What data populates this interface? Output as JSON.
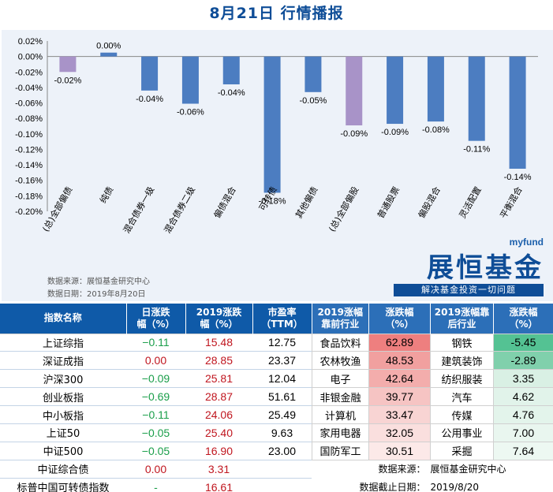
{
  "title": "8月21日  行情播报",
  "chart_data": {
    "type": "bar",
    "categories": [
      "(总)全部偏债",
      "纯债",
      "混合债券一级",
      "混合债券二级",
      "偏债混合",
      "可转债",
      "其他偏债",
      "(总)全部偏股",
      "普通股票",
      "偏股混合",
      "灵活配置",
      "平衡混合"
    ],
    "values": [
      -0.02,
      0.005,
      -0.044,
      -0.061,
      -0.036,
      -0.176,
      -0.046,
      -0.089,
      -0.087,
      -0.084,
      -0.109,
      -0.145
    ],
    "labels": [
      "-0.02%",
      "0.00%",
      "-0.04%",
      "-0.06%",
      "-0.04%",
      "-0.18%",
      "-0.05%",
      "-0.09%",
      "-0.09%",
      "-0.08%",
      "-0.11%",
      "-0.14%"
    ],
    "highlight": [
      0,
      7
    ],
    "bar_color": "#4c7dc1",
    "highlight_color": "#a893c8",
    "yticks": [
      "0.02%",
      "0.00%",
      "-0.02%",
      "-0.04%",
      "-0.06%",
      "-0.08%",
      "-0.10%",
      "-0.12%",
      "-0.14%",
      "-0.16%",
      "-0.18%",
      "-0.20%"
    ],
    "ylim": [
      -0.2,
      0.02
    ],
    "title": "",
    "xlabel": "",
    "ylabel": ""
  },
  "notes": {
    "source": "数据来源：展恒基金研究中心",
    "date": "数据日期：2019年8月20日"
  },
  "logo": {
    "my": "myfund",
    "main": "展恒基金",
    "slogan": "解决基金投资一切问题"
  },
  "index_table": {
    "headers": [
      "指数名称",
      "日涨跌\n幅（%）",
      "2019涨跌\n幅（%）",
      "市盈率\n（TTM）"
    ],
    "rows": [
      {
        "name": "上证综指",
        "day": "-0.11",
        "year": "15.48",
        "pe": "12.75"
      },
      {
        "name": "深证成指",
        "day": "0.00",
        "year": "28.85",
        "pe": "23.37"
      },
      {
        "name": "沪深300",
        "day": "-0.09",
        "year": "25.81",
        "pe": "12.04"
      },
      {
        "name": "创业板指",
        "day": "-0.69",
        "year": "28.87",
        "pe": "51.61"
      },
      {
        "name": "中小板指",
        "day": "-0.11",
        "year": "24.06",
        "pe": "25.49"
      },
      {
        "name": "上证50",
        "day": "-0.05",
        "year": "25.40",
        "pe": "9.63"
      },
      {
        "name": "中证500",
        "day": "-0.05",
        "year": "16.90",
        "pe": "23.00"
      },
      {
        "name": "中证综合债",
        "day": "0.00",
        "year": "3.31",
        "pe": ""
      },
      {
        "name": "标普中国可转债指数",
        "day": "-",
        "year": "16.61",
        "pe": ""
      }
    ]
  },
  "industry_table": {
    "headers": [
      "2019涨幅\n靠前行业",
      "涨跌幅\n（%）",
      "2019涨幅靠\n后行业",
      "涨跌幅\n（%）"
    ],
    "rows": [
      {
        "top": "食品饮料",
        "top_v": "62.89",
        "bot": "钢铁",
        "bot_v": "-5.45"
      },
      {
        "top": "农林牧渔",
        "top_v": "48.53",
        "bot": "建筑装饰",
        "bot_v": "-2.89"
      },
      {
        "top": "电子",
        "top_v": "42.64",
        "bot": "纺织服装",
        "bot_v": "3.35"
      },
      {
        "top": "非银金融",
        "top_v": "39.77",
        "bot": "汽车",
        "bot_v": "4.62"
      },
      {
        "top": "计算机",
        "top_v": "33.47",
        "bot": "传媒",
        "bot_v": "4.76"
      },
      {
        "top": "家用电器",
        "top_v": "32.05",
        "bot": "公用事业",
        "bot_v": "7.00"
      },
      {
        "top": "国防军工",
        "top_v": "30.51",
        "bot": "采掘",
        "bot_v": "7.64"
      }
    ],
    "top_colors": [
      "#ee7f7f",
      "#f1a09f",
      "#f3adac",
      "#f6c4c3",
      "#f8d4d3",
      "#fadfde",
      "#fce9e8"
    ],
    "bot_colors": [
      "#54c293",
      "#80d0ac",
      "#d9f0e4",
      "#e1f3ea",
      "#e3f4eb",
      "#e9f6ef",
      "#edf8f2"
    ],
    "footer": {
      "source_label": "数据来源：",
      "source_value": "展恒基金研究中心",
      "date_label": "数据截止日期：",
      "date_value": "2019/8/20"
    }
  }
}
